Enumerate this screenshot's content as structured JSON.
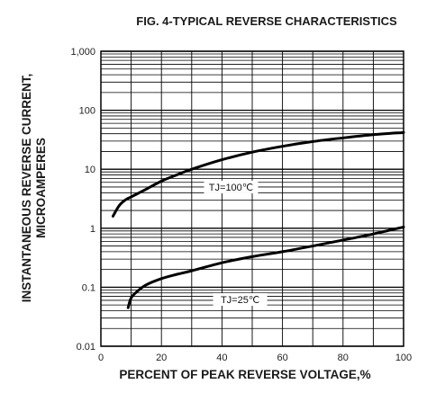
{
  "chart_data": {
    "type": "line",
    "title": "FIG. 4-TYPICAL REVERSE CHARACTERISTICS",
    "xlabel": "PERCENT OF PEAK REVERSE VOLTAGE,%",
    "ylabel_line1": "INSTANTANEOUS REVERSE CURRENT,",
    "ylabel_line2": "MICROAMPERES",
    "xlim": [
      0,
      100
    ],
    "ylim": [
      0.01,
      1000
    ],
    "y_scale": "log",
    "grid": true,
    "x_ticks": [
      {
        "value": 0,
        "label": "0"
      },
      {
        "value": 20,
        "label": "20"
      },
      {
        "value": 40,
        "label": "40"
      },
      {
        "value": 60,
        "label": "60"
      },
      {
        "value": 80,
        "label": "80"
      },
      {
        "value": 100,
        "label": "100"
      }
    ],
    "y_ticks": [
      {
        "value": 0.01,
        "label": "0.01"
      },
      {
        "value": 0.1,
        "label": "0.1"
      },
      {
        "value": 1,
        "label": "1"
      },
      {
        "value": 10,
        "label": "10"
      },
      {
        "value": 100,
        "label": "100"
      },
      {
        "value": 1000,
        "label": "1,000"
      }
    ],
    "series": [
      {
        "name": "TJ=100℃",
        "label_at": {
          "x": 43,
          "y": 5
        },
        "x": [
          4,
          6,
          8,
          10,
          15,
          20,
          25,
          30,
          40,
          50,
          60,
          70,
          80,
          90,
          100
        ],
        "y": [
          1.6,
          2.4,
          3.0,
          3.4,
          4.6,
          6.3,
          8.0,
          10.0,
          14.5,
          19.5,
          24.5,
          29.5,
          34.0,
          38.5,
          42.0
        ]
      },
      {
        "name": "TJ=25℃",
        "label_at": {
          "x": 46,
          "y": 0.062
        },
        "x": [
          9,
          10,
          12,
          15,
          20,
          25,
          30,
          40,
          50,
          60,
          70,
          80,
          90,
          100
        ],
        "y": [
          0.045,
          0.066,
          0.085,
          0.11,
          0.14,
          0.165,
          0.19,
          0.26,
          0.33,
          0.4,
          0.5,
          0.63,
          0.8,
          1.05
        ]
      }
    ]
  }
}
